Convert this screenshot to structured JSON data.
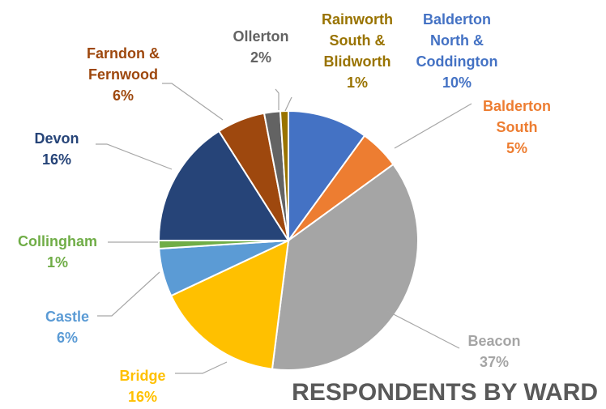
{
  "chart_data": {
    "type": "pie",
    "title": "RESPONDENTS BY WARD",
    "slices": [
      {
        "label": [
          "Balderton",
          "North &",
          "Coddington"
        ],
        "value": 10,
        "pct": "10%",
        "color": "#4472C4"
      },
      {
        "label": [
          "Balderton",
          "South"
        ],
        "value": 5,
        "pct": "5%",
        "color": "#ED7D31"
      },
      {
        "label": [
          "Beacon"
        ],
        "value": 37,
        "pct": "37%",
        "color": "#A5A5A5"
      },
      {
        "label": [
          "Bridge"
        ],
        "value": 16,
        "pct": "16%",
        "color": "#FFC000"
      },
      {
        "label": [
          "Castle"
        ],
        "value": 6,
        "pct": "6%",
        "color": "#5B9BD5"
      },
      {
        "label": [
          "Collingham"
        ],
        "value": 1,
        "pct": "1%",
        "color": "#70AD47"
      },
      {
        "label": [
          "Devon"
        ],
        "value": 16,
        "pct": "16%",
        "color": "#264478"
      },
      {
        "label": [
          "Farndon &",
          "Fernwood"
        ],
        "value": 6,
        "pct": "6%",
        "color": "#9E480E"
      },
      {
        "label": [
          "Ollerton"
        ],
        "value": 2,
        "pct": "2%",
        "color": "#636363"
      },
      {
        "label": [
          "Rainworth",
          "South &",
          "Blidworth"
        ],
        "value": 1,
        "pct": "1%",
        "color": "#997300"
      }
    ]
  }
}
